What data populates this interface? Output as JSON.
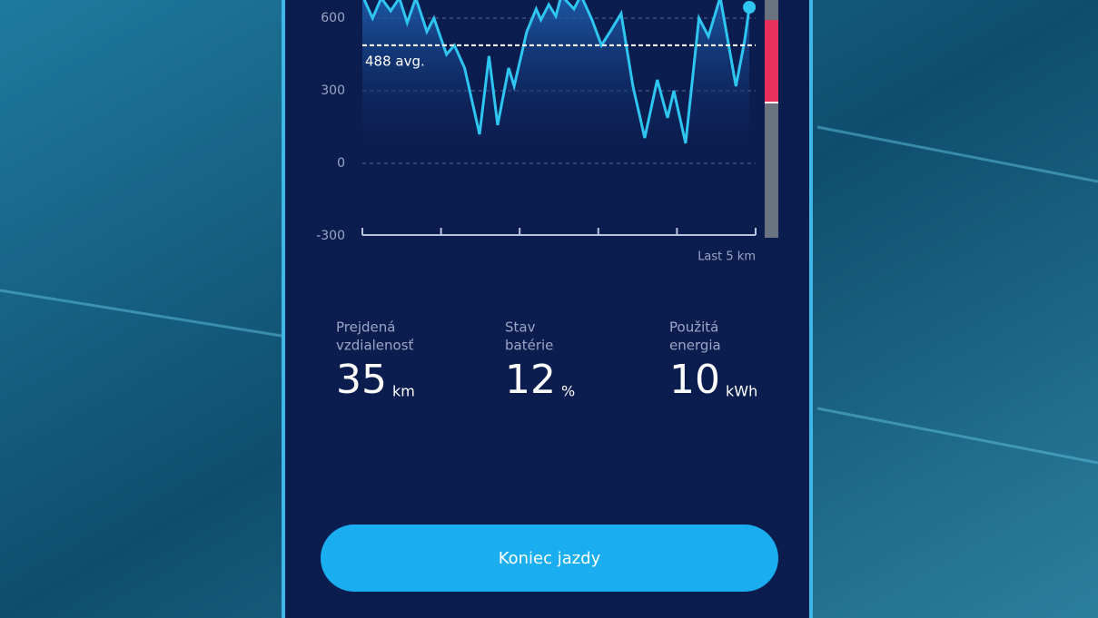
{
  "chart_data": {
    "type": "line",
    "x": [
      0,
      0.13,
      0.24,
      0.36,
      0.47,
      0.57,
      0.68,
      0.82,
      0.91,
      1.07,
      1.17,
      1.3,
      1.49,
      1.61,
      1.72,
      1.86,
      1.93,
      2.09,
      2.21,
      2.27,
      2.37,
      2.46,
      2.53,
      2.69,
      2.78,
      2.92,
      3.04,
      3.15,
      3.29,
      3.44,
      3.59,
      3.75,
      3.88,
      3.96,
      4.11,
      4.28,
      4.4,
      4.55,
      4.75,
      4.86,
      4.92
    ],
    "series": [
      {
        "color": "#2ec5f0",
        "values": [
          694,
          600,
          683,
          630,
          683,
          581,
          683,
          544,
          600,
          450,
          488,
          394,
          120,
          443,
          158,
          394,
          319,
          544,
          638,
          593,
          656,
          608,
          694,
          638,
          694,
          593,
          488,
          544,
          619,
          319,
          105,
          345,
          188,
          300,
          83,
          600,
          525,
          686,
          319,
          506,
          645
        ]
      }
    ],
    "xlim": [
      0,
      5
    ],
    "xticks": [
      0,
      1,
      2,
      3,
      4,
      5
    ],
    "ylim": [
      -300,
      675
    ],
    "yticks": [
      -300,
      0,
      300,
      600
    ],
    "grid": true,
    "average": {
      "value": 488,
      "label": "488 avg."
    },
    "x_label": "Last 5 km",
    "range": {
      "from": 255,
      "to": 592,
      "color": "#e8305a"
    }
  },
  "stats": [
    {
      "label_lines": [
        "Prejdená",
        "vzdialenosť"
      ],
      "value": 35,
      "unit": "km"
    },
    {
      "label_lines": [
        "Stav",
        "batérie"
      ],
      "value": 12,
      "unit": "%"
    },
    {
      "label_lines": [
        "Použitá",
        "energia"
      ],
      "value": 10,
      "unit": "kWh"
    }
  ],
  "button": "Koniec jazdy"
}
